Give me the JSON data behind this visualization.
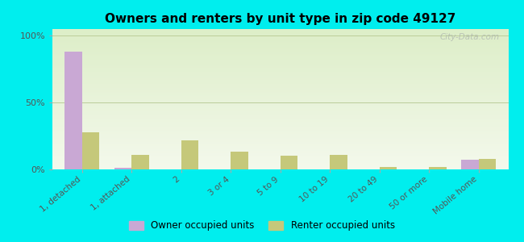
{
  "title": "Owners and renters by unit type in zip code 49127",
  "categories": [
    "1, detached",
    "1, attached",
    "2",
    "3 or 4",
    "5 to 9",
    "10 to 19",
    "20 to 49",
    "50 or more",
    "Mobile home"
  ],
  "owner_values": [
    88,
    1,
    0,
    0,
    0,
    0,
    0,
    0,
    7
  ],
  "renter_values": [
    28,
    11,
    22,
    13,
    10,
    11,
    2,
    2,
    8
  ],
  "owner_color": "#c9a8d4",
  "renter_color": "#c5c87a",
  "outer_bg": "#00eeee",
  "yticks": [
    0,
    50,
    100
  ],
  "ytick_labels": [
    "0%",
    "50%",
    "100%"
  ],
  "ylim": [
    0,
    105
  ],
  "bar_width": 0.35,
  "legend_owner": "Owner occupied units",
  "legend_renter": "Renter occupied units",
  "watermark": "City-Data.com",
  "grad_top": "#f4f9ec",
  "grad_bottom": "#ddeec8"
}
